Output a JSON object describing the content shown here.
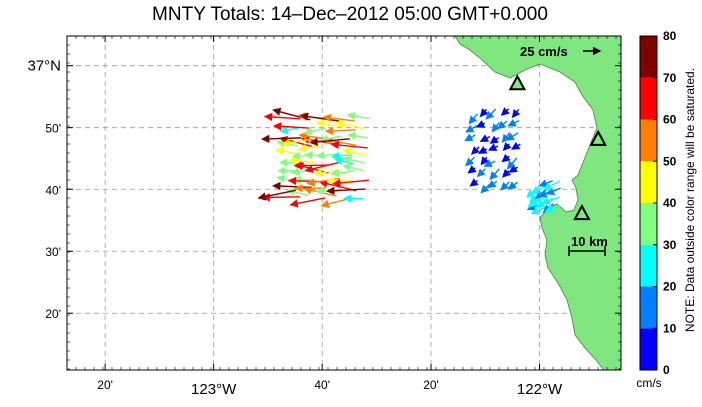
{
  "title": "MNTY Totals: 14–Dec–2012 05:00 GMT+0.000",
  "map": {
    "x_ticks": [
      {
        "label": "20'",
        "lon": -123.333
      },
      {
        "label": "123°W",
        "lon": -123.0,
        "major": true
      },
      {
        "label": "40'",
        "lon": -122.667
      },
      {
        "label": "20'",
        "lon": -122.333
      },
      {
        "label": "122°W",
        "lon": -122.0,
        "major": true
      }
    ],
    "y_ticks": [
      {
        "label": "37°N",
        "lat": 37.0,
        "major": true
      },
      {
        "label": "50'",
        "lat": 36.833
      },
      {
        "label": "40'",
        "lat": 36.667
      },
      {
        "label": "30'",
        "lat": 36.5
      },
      {
        "label": "20'",
        "lat": 36.333
      }
    ],
    "lon_range": [
      -123.45,
      -121.75
    ],
    "lat_range": [
      36.18,
      37.08
    ],
    "land_color": "#80e680",
    "sea_color": "#ffffff",
    "scale_vector_label": "25 cm/s",
    "scale_bar_label": "10 km",
    "sites": [
      {
        "name": "site-north",
        "lon": -122.068,
        "lat": 36.95
      },
      {
        "name": "site-east",
        "lon": -121.82,
        "lat": 36.8
      },
      {
        "name": "site-south",
        "lon": -121.87,
        "lat": 36.6
      }
    ]
  },
  "colorbar": {
    "tick_labels": [
      "0",
      "10",
      "20",
      "30",
      "40",
      "50",
      "60",
      "70",
      "80"
    ],
    "colors": [
      "#0000ff",
      "#0080ff",
      "#00ffff",
      "#80ff80",
      "#ffff00",
      "#ff8000",
      "#ff0000",
      "#800000"
    ],
    "unit": "cm/s",
    "note": "NOTE: Data outside color range will be saturated."
  },
  "vector_groups": [
    {
      "name": "offshore-cluster",
      "lon0": -122.75,
      "lon1": -122.5,
      "lat0": 36.64,
      "lat1": 36.87,
      "cols": 6,
      "rows": 10,
      "speed_min": 25,
      "speed_max": 75,
      "dir_deg": 180
    },
    {
      "name": "bay-north-cluster",
      "lon0": -122.2,
      "lon1": -122.04,
      "lat0": 36.68,
      "lat1": 36.9,
      "cols": 5,
      "rows": 7,
      "speed_min": 5,
      "speed_max": 18,
      "dir_deg": 220
    },
    {
      "name": "bay-south-cluster",
      "lon0": -122.0,
      "lon1": -121.92,
      "lat0": 36.62,
      "lat1": 36.7,
      "cols": 4,
      "rows": 4,
      "speed_min": 15,
      "speed_max": 28,
      "dir_deg": 210
    }
  ]
}
